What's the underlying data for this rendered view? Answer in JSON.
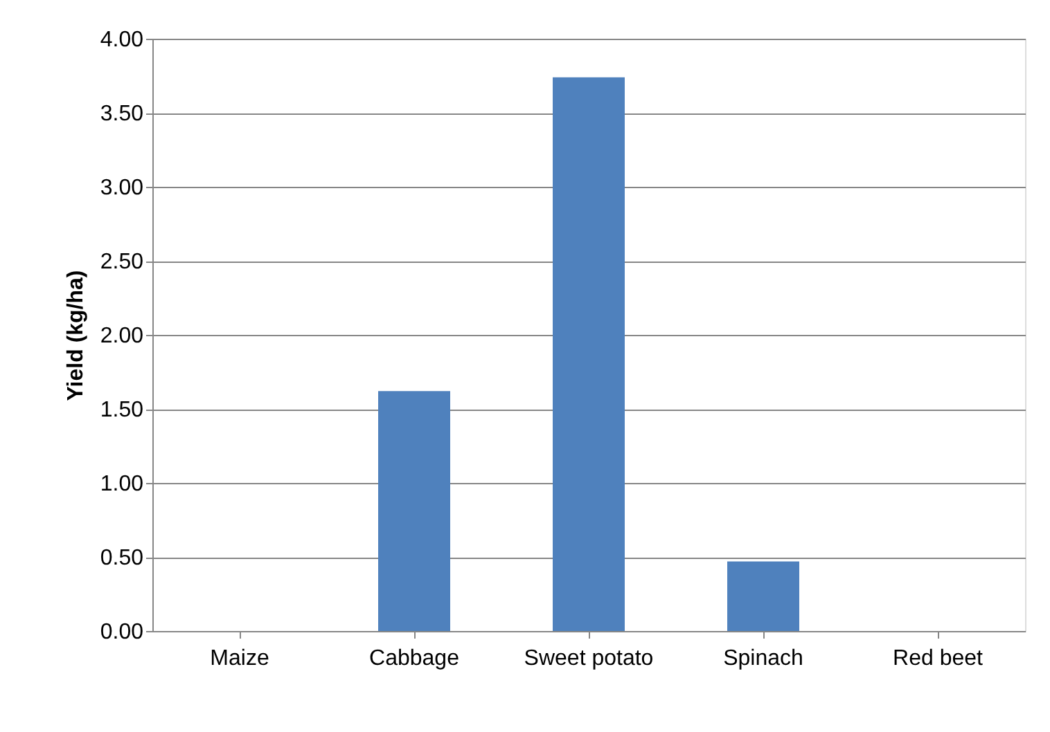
{
  "chart_data": {
    "type": "bar",
    "ylabel": "Yield (kg/ha)",
    "categories": [
      "Maize",
      "Cabbage",
      "Sweet potato",
      "Spinach",
      "Red beet"
    ],
    "values": [
      0,
      1.62,
      3.74,
      0.47,
      0
    ],
    "color": "#4f81bd",
    "ylim": [
      0,
      4
    ],
    "yticks": [
      {
        "value": 0,
        "label": "0.00"
      },
      {
        "value": 0.5,
        "label": "0.50"
      },
      {
        "value": 1,
        "label": "1.00"
      },
      {
        "value": 1.5,
        "label": "1.50"
      },
      {
        "value": 2,
        "label": "2.00"
      },
      {
        "value": 2.5,
        "label": "2.50"
      },
      {
        "value": 3,
        "label": "3.00"
      },
      {
        "value": 3.5,
        "label": "3.50"
      },
      {
        "value": 4,
        "label": "4.00"
      }
    ],
    "grid": "y"
  }
}
